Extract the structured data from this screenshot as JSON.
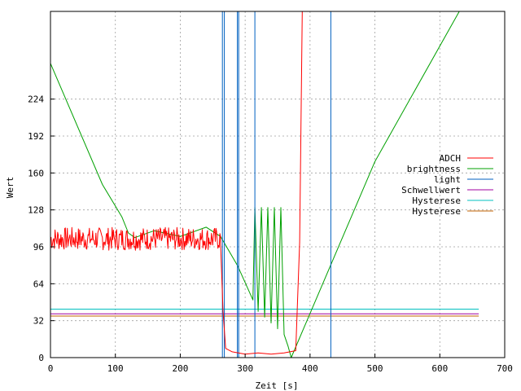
{
  "chart_data": {
    "type": "line",
    "title": "",
    "xlabel": "Zeit [s]",
    "ylabel": "Wert",
    "xlim": [
      0,
      700
    ],
    "ylim": [
      0,
      300
    ],
    "xticks": [
      0,
      100,
      200,
      300,
      400,
      500,
      600,
      700
    ],
    "yticks": [
      0,
      32,
      64,
      96,
      128,
      160,
      192,
      224
    ],
    "grid": true,
    "legend_position": "right",
    "series": [
      {
        "name": "ADCH",
        "color": "#ff0000",
        "noise": {
          "x_range": [
            0,
            262
          ],
          "step": 1,
          "base": 103,
          "amplitude": 10,
          "seed": 7
        },
        "points": [
          [
            262,
            100
          ],
          [
            266,
            40
          ],
          [
            270,
            8
          ],
          [
            280,
            5
          ],
          [
            300,
            3
          ],
          [
            320,
            4
          ],
          [
            340,
            3
          ],
          [
            360,
            4
          ],
          [
            378,
            6
          ],
          [
            384,
            100
          ],
          [
            386,
            200
          ],
          [
            388,
            300
          ],
          [
            660,
            300
          ]
        ]
      },
      {
        "name": "brightness",
        "color": "#00a000",
        "points": [
          [
            0,
            255
          ],
          [
            80,
            150
          ],
          [
            110,
            122
          ],
          [
            120,
            108
          ],
          [
            130,
            104
          ],
          [
            160,
            110
          ],
          [
            200,
            105
          ],
          [
            240,
            113
          ],
          [
            262,
            105
          ],
          [
            288,
            80
          ],
          [
            312,
            50
          ],
          [
            315,
            130
          ],
          [
            320,
            40
          ],
          [
            325,
            130
          ],
          [
            330,
            35
          ],
          [
            335,
            130
          ],
          [
            340,
            30
          ],
          [
            345,
            130
          ],
          [
            350,
            25
          ],
          [
            355,
            130
          ],
          [
            360,
            20
          ],
          [
            366,
            10
          ],
          [
            371,
            0
          ],
          [
            500,
            170
          ],
          [
            630,
            300
          ],
          [
            660,
            300
          ]
        ]
      },
      {
        "name": "light",
        "color": "#0060c0",
        "points": [
          [
            0,
            0
          ],
          [
            265,
            0
          ],
          [
            265,
            300
          ],
          [
            268,
            300
          ],
          [
            268,
            0
          ],
          [
            288,
            0
          ],
          [
            288,
            300
          ],
          [
            290,
            300
          ],
          [
            290,
            0
          ],
          [
            315,
            0
          ],
          [
            315,
            300
          ],
          [
            432,
            300
          ],
          [
            432,
            0
          ],
          [
            660,
            0
          ]
        ]
      },
      {
        "name": "Schwellwert",
        "color": "#a000a0",
        "points": [
          [
            0,
            38
          ],
          [
            660,
            38
          ]
        ]
      },
      {
        "name": "Hysterese",
        "color": "#00c0c0",
        "points": [
          [
            0,
            42
          ],
          [
            660,
            42
          ]
        ]
      },
      {
        "name": "Hysterese",
        "color": "#c06000",
        "points": [
          [
            0,
            36
          ],
          [
            660,
            36
          ]
        ]
      }
    ]
  }
}
